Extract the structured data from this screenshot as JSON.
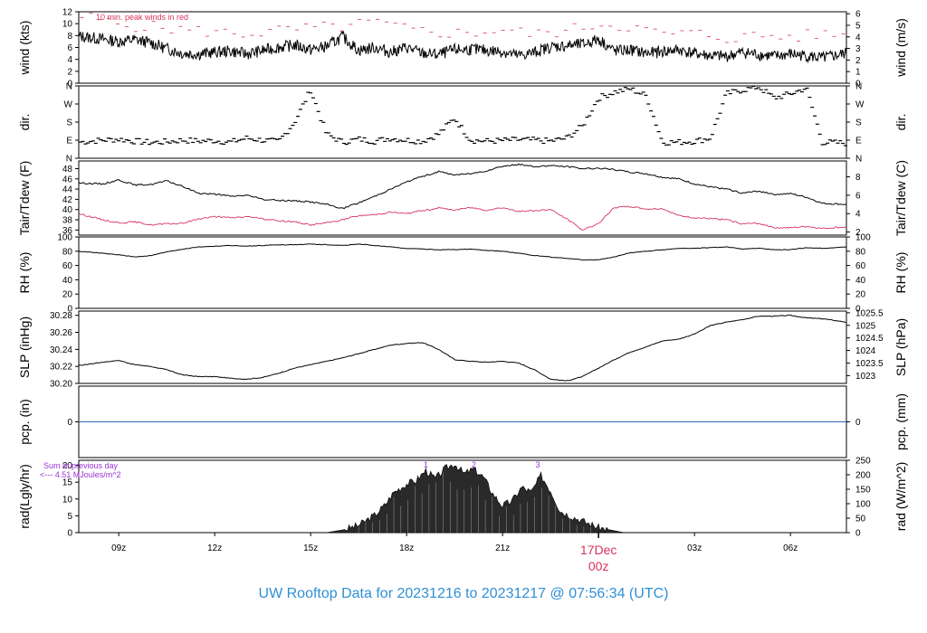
{
  "footer": {
    "title": "UW Rooftop Data for 20231216  to  20231217 @ 07:56:34  (UTC)"
  },
  "colors": {
    "frame": "#000000",
    "series": "#000000",
    "accent": "#d6335d",
    "pcp": "#2b6cb0",
    "note": "#9b30d9",
    "footer": "#2f8fd6"
  },
  "time_axis": {
    "xlim": [
      -1.25,
      22.75
    ],
    "tick_labels": [
      {
        "hour": 0,
        "label": "09z"
      },
      {
        "hour": 3,
        "label": "12z"
      },
      {
        "hour": 6,
        "label": "15z"
      },
      {
        "hour": 9,
        "label": "18z"
      },
      {
        "hour": 12,
        "label": "21z"
      },
      {
        "hour": 18,
        "label": "03z"
      },
      {
        "hour": 21,
        "label": "06z"
      }
    ],
    "date_marker": {
      "hour": 15,
      "date": "17Dec",
      "time": "00z"
    }
  },
  "chart_data": [
    {
      "id": "wind",
      "type": "line",
      "ylabel": "wind (kts)",
      "ylabel_right": "wind (m/s)",
      "ylim": [
        0,
        12
      ],
      "yticks": [
        0,
        2,
        4,
        6,
        8,
        10,
        12
      ],
      "right_ylim": [
        0,
        6.17
      ],
      "right_ticks": [
        0,
        1,
        2,
        3,
        4,
        5,
        6
      ],
      "annotation": "10 min. peak winds in red",
      "series": [
        {
          "role": "mean",
          "x": [
            -1.25,
            -0.5,
            0,
            0.5,
            1,
            1.5,
            2,
            2.5,
            3,
            3.5,
            4,
            4.5,
            5,
            5.5,
            6,
            6.5,
            7,
            7.5,
            8,
            8.5,
            9,
            9.5,
            10,
            10.5,
            11,
            11.5,
            12,
            12.5,
            13,
            13.5,
            14,
            14.5,
            15,
            15.5,
            16,
            16.5,
            17,
            17.5,
            18,
            18.5,
            19,
            19.5,
            20,
            20.5,
            21,
            21.5,
            22,
            22.75
          ],
          "y": [
            7.9,
            7.4,
            7.0,
            7.3,
            6.8,
            5.8,
            5.0,
            4.9,
            5.2,
            5.4,
            4.9,
            5.5,
            6.0,
            6.4,
            5.6,
            6.2,
            7.8,
            5.5,
            6.0,
            5.2,
            6.0,
            5.0,
            4.8,
            5.6,
            5.7,
            5.5,
            5.3,
            4.6,
            5.2,
            6.1,
            6.3,
            6.5,
            7.4,
            5.4,
            5.6,
            5.0,
            5.3,
            5.6,
            5.0,
            4.6,
            4.5,
            5.2,
            4.8,
            4.5,
            4.9,
            4.6,
            4.2,
            5.0
          ]
        },
        {
          "role": "peak",
          "x": [
            -1,
            0,
            1,
            2,
            3,
            4,
            5,
            6,
            7,
            8,
            9,
            10,
            11,
            12,
            13,
            14,
            15,
            16,
            17,
            18,
            19,
            20,
            21,
            22
          ],
          "y": [
            11.2,
            9.8,
            9.5,
            9.0,
            8.6,
            8.3,
            8.8,
            9.2,
            9.5,
            10.3,
            9.0,
            8.5,
            8.4,
            9.0,
            8.2,
            8.8,
            10.0,
            9.5,
            8.2,
            8.4,
            7.6,
            8.0,
            7.8,
            8.2
          ]
        }
      ]
    },
    {
      "id": "dir",
      "type": "scatter",
      "ylabel": "dir.",
      "ylabel_right": "dir.",
      "ylim": [
        0,
        360
      ],
      "yticks": [
        {
          "v": 0,
          "label": "N"
        },
        {
          "v": 90,
          "label": "E"
        },
        {
          "v": 180,
          "label": "S"
        },
        {
          "v": 270,
          "label": "W"
        },
        {
          "v": 360,
          "label": "N"
        }
      ],
      "series": [
        {
          "role": "direction",
          "x": [
            -1.25,
            -0.5,
            0,
            0.5,
            1,
            1.5,
            2,
            2.5,
            3,
            3.5,
            4,
            4.5,
            5,
            5.5,
            6,
            6.5,
            7,
            7.5,
            8,
            8.5,
            9,
            9.5,
            10,
            10.5,
            11,
            11.5,
            12,
            12.5,
            13,
            13.5,
            14,
            14.5,
            15,
            15.5,
            16,
            16.5,
            17,
            17.5,
            18,
            18.5,
            19,
            19.5,
            20,
            20.5,
            21,
            21.5,
            22,
            22.75
          ],
          "y": [
            80,
            90,
            95,
            85,
            78,
            82,
            90,
            85,
            88,
            80,
            100,
            90,
            82,
            180,
            340,
            120,
            80,
            95,
            85,
            100,
            90,
            85,
            120,
            200,
            90,
            85,
            88,
            92,
            90,
            85,
            100,
            160,
            300,
            330,
            345,
            310,
            80,
            80,
            85,
            100,
            320,
            340,
            355,
            300,
            320,
            350,
            80,
            75
          ]
        }
      ]
    },
    {
      "id": "temp",
      "type": "line",
      "ylabel": "Tair/Tdew (F)",
      "ylabel_right": "Tair/Tdew (C)",
      "ylim": [
        35,
        49.5
      ],
      "yticks": [
        36,
        38,
        40,
        42,
        44,
        46,
        48
      ],
      "right_ticks": [
        2,
        4,
        6,
        8
      ],
      "series": [
        {
          "role": "air_temp",
          "x": [
            -1.25,
            -0.5,
            0,
            0.5,
            1,
            1.5,
            2,
            2.5,
            3,
            3.5,
            4,
            4.5,
            5,
            5.5,
            6,
            6.5,
            7,
            7.5,
            8,
            8.5,
            9,
            9.5,
            10,
            10.5,
            11,
            11.5,
            12,
            12.5,
            13,
            13.5,
            14,
            14.5,
            15,
            15.5,
            16,
            16.5,
            17,
            17.5,
            18,
            18.5,
            19,
            19.5,
            20,
            20.5,
            21,
            21.5,
            22,
            22.75
          ],
          "y": [
            45.2,
            45.0,
            45.8,
            44.8,
            44.9,
            45.6,
            44.5,
            43.2,
            43.0,
            42.6,
            42.8,
            42.0,
            41.8,
            41.7,
            41.5,
            41.0,
            40.2,
            41.3,
            42.6,
            44.0,
            45.4,
            46.5,
            47.4,
            46.8,
            47.0,
            47.6,
            48.5,
            48.8,
            48.4,
            48.6,
            48.4,
            48.0,
            48.1,
            47.8,
            47.3,
            47.0,
            46.3,
            46.0,
            45.0,
            44.4,
            44.0,
            43.2,
            43.6,
            43.0,
            43.1,
            42.4,
            41.2,
            41.0
          ]
        },
        {
          "role": "dew_point",
          "x": [
            -1.25,
            -0.5,
            0,
            0.5,
            1,
            1.5,
            2,
            2.5,
            3,
            3.5,
            4,
            4.5,
            5,
            5.5,
            6,
            6.5,
            7,
            7.5,
            8,
            8.5,
            9,
            9.5,
            10,
            10.5,
            11,
            11.5,
            12,
            12.5,
            13,
            13.5,
            14,
            14.5,
            15,
            15.5,
            16,
            16.5,
            17,
            17.5,
            18,
            18.5,
            19,
            19.5,
            20,
            20.5,
            21,
            21.5,
            22,
            22.75
          ],
          "y": [
            39.2,
            38.0,
            37.4,
            37.6,
            37.0,
            37.2,
            37.3,
            38.2,
            38.6,
            38.4,
            38.6,
            38.2,
            37.8,
            37.6,
            37.0,
            37.4,
            38.0,
            38.8,
            39.0,
            39.5,
            39.2,
            39.8,
            40.3,
            39.9,
            40.4,
            39.9,
            40.4,
            39.6,
            39.8,
            40.0,
            38.2,
            36.0,
            37.3,
            40.4,
            40.6,
            40.1,
            40.2,
            38.8,
            38.4,
            38.2,
            38.0,
            37.2,
            37.3,
            36.5,
            36.4,
            36.7,
            36.3,
            36.6
          ]
        }
      ]
    },
    {
      "id": "rh",
      "type": "line",
      "ylabel": "RH (%)",
      "ylabel_right": "RH (%)",
      "ylim": [
        0,
        100
      ],
      "yticks": [
        0,
        20,
        40,
        60,
        80,
        100
      ],
      "series": [
        {
          "role": "relative_humidity",
          "x": [
            -1.25,
            -0.5,
            0,
            0.5,
            1,
            1.5,
            2,
            2.5,
            3,
            3.5,
            4,
            4.5,
            5,
            5.5,
            6,
            6.5,
            7,
            7.5,
            8,
            8.5,
            9,
            9.5,
            10,
            10.5,
            11,
            11.5,
            12,
            12.5,
            13,
            13.5,
            14,
            14.5,
            15,
            15.5,
            16,
            16.5,
            17,
            17.5,
            18,
            18.5,
            19,
            19.5,
            20,
            20.5,
            21,
            21.5,
            22,
            22.75
          ],
          "y": [
            80,
            77,
            75,
            72,
            74,
            79,
            83,
            86,
            87,
            88,
            87,
            88,
            89,
            89,
            90,
            89,
            88,
            90,
            88,
            86,
            84,
            83,
            82,
            82,
            83,
            81,
            80,
            77,
            74,
            72,
            70,
            68,
            68,
            72,
            78,
            80,
            82,
            84,
            84,
            85,
            86,
            83,
            84,
            82,
            82,
            85,
            84,
            86
          ]
        }
      ]
    },
    {
      "id": "slp",
      "type": "line",
      "ylabel": "SLP (inHg)",
      "ylabel_right": "SLP (hPa)",
      "ylim": [
        30.2,
        30.285
      ],
      "yticks": [
        30.2,
        30.22,
        30.24,
        30.26,
        30.28
      ],
      "right_ticks": [
        "1023",
        "1023.5",
        "1024",
        "1024.5",
        "1025",
        "1025.5"
      ],
      "series": [
        {
          "role": "sea_level_pressure",
          "x": [
            -1.25,
            -0.5,
            0,
            0.5,
            1,
            1.5,
            2,
            2.5,
            3,
            3.5,
            4,
            4.5,
            5,
            5.5,
            6,
            6.5,
            7,
            7.5,
            8,
            8.5,
            9,
            9.5,
            10,
            10.5,
            11,
            11.5,
            12,
            12.5,
            13,
            13.5,
            14,
            14.5,
            15,
            15.5,
            16,
            16.5,
            17,
            17.5,
            18,
            18.5,
            19,
            19.5,
            20,
            20.5,
            21,
            21.5,
            22,
            22.75
          ],
          "y": [
            30.221,
            30.225,
            30.227,
            30.222,
            30.22,
            30.216,
            30.21,
            30.208,
            30.208,
            30.206,
            30.205,
            30.207,
            30.212,
            30.218,
            30.222,
            30.226,
            30.23,
            30.235,
            30.24,
            30.245,
            30.247,
            30.248,
            30.24,
            30.228,
            30.226,
            30.225,
            30.226,
            30.224,
            30.216,
            30.205,
            30.203,
            30.208,
            30.218,
            30.228,
            30.237,
            30.243,
            30.25,
            30.252,
            30.258,
            30.268,
            30.272,
            30.275,
            30.279,
            30.279,
            30.28,
            30.277,
            30.276,
            30.272
          ]
        }
      ]
    },
    {
      "id": "pcp",
      "type": "line",
      "ylabel": "pcp. (in)",
      "ylabel_right": "pcp. (mm)",
      "ylim": [
        -1,
        1
      ],
      "yticks": [
        0
      ],
      "right_ticks": [
        0
      ],
      "series": [
        {
          "role": "precipitation",
          "x": [
            -1.25,
            22.75
          ],
          "y": [
            0,
            0
          ]
        }
      ]
    },
    {
      "id": "rad",
      "type": "area",
      "ylabel": "rad(Lgly/hr)",
      "ylabel_right": "rad (W/m^2)",
      "ylim": [
        0,
        21.5
      ],
      "yticks": [
        0,
        5,
        10,
        15,
        20
      ],
      "right_ticks": [
        0,
        50,
        100,
        150,
        200,
        250
      ],
      "annotations": [
        "Sum of previous day",
        "<--- 4.51 MJoules/m^2"
      ],
      "markers": [
        {
          "hour": 9.6,
          "label": "1"
        },
        {
          "hour": 11.1,
          "label": "2"
        },
        {
          "hour": 13.1,
          "label": "3"
        }
      ],
      "series": [
        {
          "role": "solar_radiation",
          "x": [
            6.5,
            7.0,
            7.5,
            8.0,
            8.3,
            8.6,
            9.0,
            9.3,
            9.6,
            9.9,
            10.2,
            10.5,
            10.8,
            11.1,
            11.4,
            11.7,
            12.0,
            12.3,
            12.6,
            12.9,
            13.2,
            13.5,
            13.8,
            14.0,
            14.5,
            15.0,
            15.8
          ],
          "y": [
            0,
            0.8,
            2.2,
            5.2,
            8.0,
            12.0,
            14.5,
            15.5,
            18.5,
            16.0,
            19.0,
            20.5,
            17.5,
            19.0,
            16.5,
            11.5,
            8.0,
            9.5,
            13.5,
            12.0,
            17.0,
            12.5,
            6.5,
            5.5,
            3.5,
            1.5,
            0
          ]
        }
      ]
    }
  ]
}
